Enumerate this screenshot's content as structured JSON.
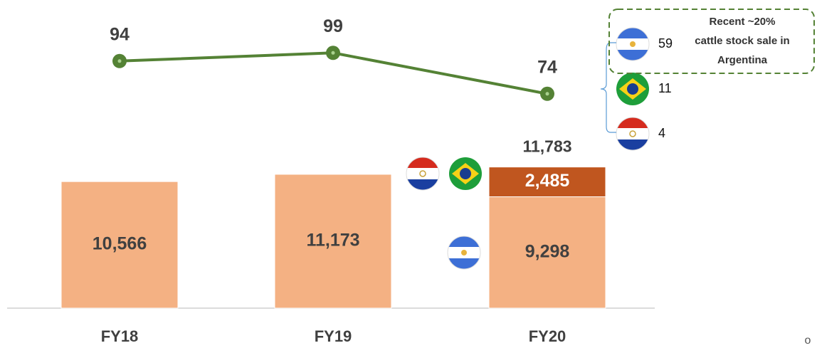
{
  "chart_data": {
    "type": "bar",
    "categories": [
      "FY18",
      "FY19",
      "FY20"
    ],
    "ylim": [
      0,
      12000
    ],
    "y2lim": [
      0,
      100
    ],
    "series": [
      {
        "color": "#f4b183",
        "values": [
          10566,
          11173,
          9298
        ],
        "value_labels": [
          "10,566",
          "11,173",
          "9,298"
        ]
      },
      {
        "color": "#c0561f",
        "values": [
          null,
          null,
          2485
        ],
        "value_labels": [
          null,
          null,
          "2,485"
        ]
      },
      {
        "type": "line",
        "axis": "y2",
        "color": "#548235",
        "values": [
          94,
          99,
          74
        ]
      }
    ],
    "annotations": [
      "11,783"
    ],
    "breakdown": [
      59,
      11,
      4
    ],
    "callout": [
      "Recent ~20%",
      "cattle stock sale in",
      "Argentina"
    ],
    "footer_mark": "o"
  }
}
